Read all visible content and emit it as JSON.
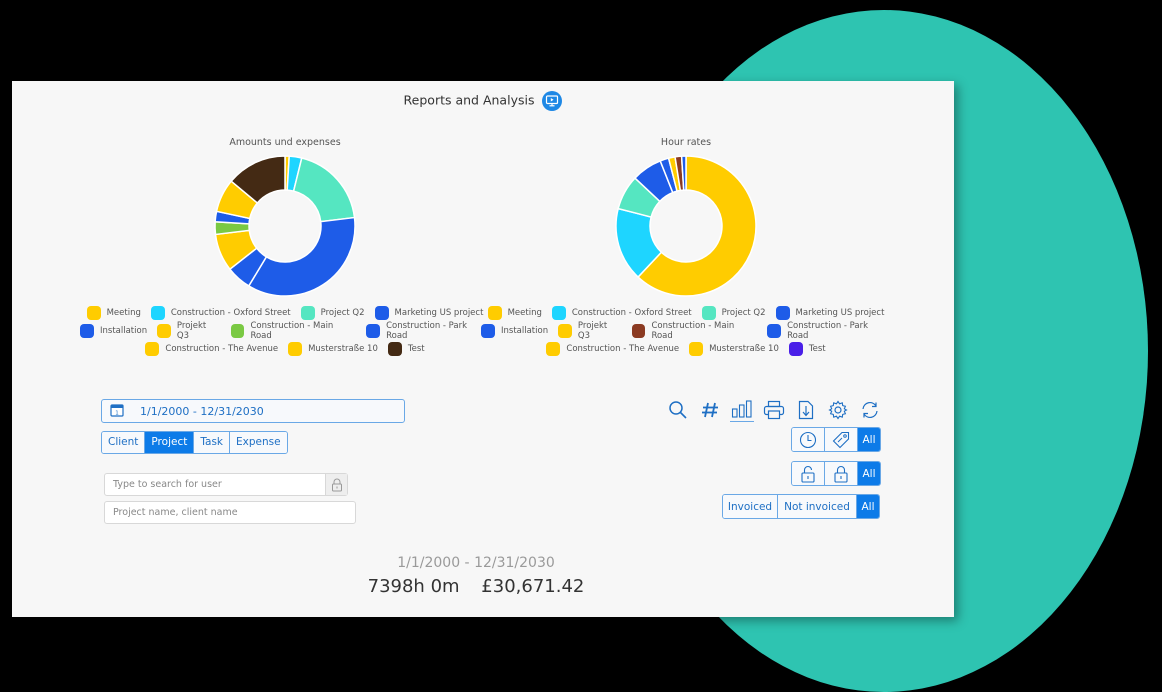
{
  "header": {
    "title": "Reports and Analysis",
    "icon": "monitor-play-icon"
  },
  "charts": {
    "amounts": {
      "title": "Amounts und expenses"
    },
    "hours": {
      "title": "Hour rates"
    }
  },
  "chart_data": [
    {
      "type": "pie",
      "title": "Amounts und expenses",
      "donut": true,
      "categories": [
        "Meeting",
        "Construction - Oxford Street",
        "Project Q2",
        "Marketing US project",
        "Installation",
        "Projekt Q3",
        "Construction - Main Road",
        "Construction - Park Road",
        "Construction - The Avenue",
        "Musterstraße 10",
        "Test"
      ],
      "colors": [
        "#ffcc00",
        "#1ed5ff",
        "#55e6c1",
        "#1e5ce8",
        "#1e5ce8",
        "#ffcc00",
        "#7ac943",
        "#1e5ce8",
        "#ffcc00",
        "#ffcc00",
        "#442a14"
      ],
      "values": [
        1,
        3,
        20,
        37,
        6,
        9,
        3,
        2.5,
        0,
        8,
        14.5
      ],
      "legend_position": "bottom"
    },
    {
      "type": "pie",
      "title": "Hour rates",
      "donut": true,
      "categories": [
        "Meeting",
        "Construction - Oxford Street",
        "Project Q2",
        "Marketing US project",
        "Installation",
        "Projekt Q3",
        "Construction - Main Road",
        "Construction - Park Road",
        "Construction - The Avenue",
        "Musterstraße 10",
        "Test"
      ],
      "colors": [
        "#ffcc00",
        "#1ed5ff",
        "#55e6c1",
        "#1e5ce8",
        "#1e5ce8",
        "#ffcc00",
        "#8b3a22",
        "#1e5ce8",
        "#ffcc00",
        "#ffcc00",
        "#4a1fe8"
      ],
      "values": [
        62,
        17,
        8,
        7,
        2,
        1.5,
        1.5,
        1,
        0,
        0,
        0
      ],
      "legend_position": "bottom"
    }
  ],
  "legend_amounts": {
    "rows": [
      [
        {
          "label": "Meeting",
          "color": "#ffcc00"
        },
        {
          "label": "Construction - Oxford Street",
          "color": "#1ed5ff"
        },
        {
          "label": "Project Q2",
          "color": "#55e6c1"
        },
        {
          "label": "Marketing US project",
          "color": "#1e5ce8"
        }
      ],
      [
        {
          "label": "Installation",
          "color": "#1e5ce8"
        },
        {
          "label": "Projekt Q3",
          "color": "#ffcc00"
        },
        {
          "label": "Construction - Main Road",
          "color": "#7ac943"
        },
        {
          "label": "Construction - Park Road",
          "color": "#1e5ce8"
        }
      ],
      [
        {
          "label": "Construction - The Avenue",
          "color": "#ffcc00"
        },
        {
          "label": "Musterstraße 10",
          "color": "#ffcc00"
        },
        {
          "label": "Test",
          "color": "#442a14"
        }
      ]
    ]
  },
  "legend_hours": {
    "rows": [
      [
        {
          "label": "Meeting",
          "color": "#ffcc00"
        },
        {
          "label": "Construction - Oxford Street",
          "color": "#1ed5ff"
        },
        {
          "label": "Project Q2",
          "color": "#55e6c1"
        },
        {
          "label": "Marketing US project",
          "color": "#1e5ce8"
        }
      ],
      [
        {
          "label": "Installation",
          "color": "#1e5ce8"
        },
        {
          "label": "Projekt Q3",
          "color": "#ffcc00"
        },
        {
          "label": "Construction - Main Road",
          "color": "#8b3a22"
        },
        {
          "label": "Construction - Park Road",
          "color": "#1e5ce8"
        }
      ],
      [
        {
          "label": "Construction - The Avenue",
          "color": "#ffcc00"
        },
        {
          "label": "Musterstraße 10",
          "color": "#ffcc00"
        },
        {
          "label": "Test",
          "color": "#4a1fe8"
        }
      ]
    ]
  },
  "filters": {
    "date_range": "1/1/2000 - 12/31/2030",
    "group_tabs": [
      {
        "label": "Client",
        "active": false
      },
      {
        "label": "Project",
        "active": true
      },
      {
        "label": "Task",
        "active": false
      },
      {
        "label": "Expense",
        "active": false
      }
    ],
    "user_search_placeholder": "Type to search for user",
    "project_search_placeholder": "Project name, client name"
  },
  "toolbar": {
    "icons": [
      "search-icon",
      "hash-icon",
      "bar-chart-icon",
      "print-icon",
      "export-file-icon",
      "settings-icon",
      "refresh-icon"
    ]
  },
  "toggles": {
    "type_all": "All",
    "lock_all": "All",
    "invoice": {
      "invoiced": "Invoiced",
      "not_invoiced": "Not invoiced",
      "all": "All"
    }
  },
  "summary": {
    "range": "1/1/2000 - 12/31/2030",
    "hours": "7398h 0m",
    "amount": "£30,671.42"
  },
  "colors": {
    "accent": "#0d7be8",
    "teal_background": "#2ec4b1",
    "panel": "#f7f7f7"
  }
}
